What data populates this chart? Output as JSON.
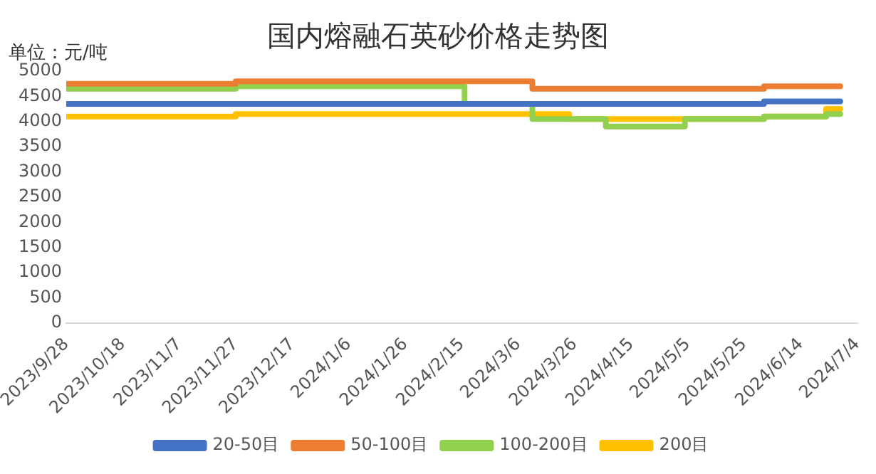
{
  "chart_data": {
    "type": "step",
    "title": "国内熔融石英砂价格走势图",
    "ylabel": "单位：元/吨",
    "xlim": [
      "2023-09-28",
      "2024-07-04"
    ],
    "xticks": [
      {
        "value": "2023-09-28",
        "label": "2023/9/28"
      },
      {
        "value": "2023-10-18",
        "label": "2023/10/18"
      },
      {
        "value": "2023-11-07",
        "label": "2023/11/7"
      },
      {
        "value": "2023-11-27",
        "label": "2023/11/27"
      },
      {
        "value": "2023-12-17",
        "label": "2023/12/17"
      },
      {
        "value": "2024-01-06",
        "label": "2024/1/6"
      },
      {
        "value": "2024-01-26",
        "label": "2024/1/26"
      },
      {
        "value": "2024-02-15",
        "label": "2024/2/15"
      },
      {
        "value": "2024-03-06",
        "label": "2024/3/6"
      },
      {
        "value": "2024-03-26",
        "label": "2024/3/26"
      },
      {
        "value": "2024-04-15",
        "label": "2024/4/15"
      },
      {
        "value": "2024-05-05",
        "label": "2024/5/5"
      },
      {
        "value": "2024-05-25",
        "label": "2024/5/25"
      },
      {
        "value": "2024-06-14",
        "label": "2024/6/14"
      },
      {
        "value": "2024-07-04",
        "label": "2024/7/4"
      }
    ],
    "ylim": [
      0,
      5000
    ],
    "yticks": [
      0,
      500,
      1000,
      1500,
      2000,
      2500,
      3000,
      3500,
      4000,
      4500,
      5000
    ],
    "grid": false,
    "legend": "bottom",
    "line_style": "solid",
    "marker": "none",
    "series": [
      {
        "name": "20-50目",
        "color": "#4472c4",
        "x": [
          "2023-09-28",
          "2023-11-27",
          "2024-06-01",
          "2024-06-28"
        ],
        "values": [
          4350,
          4350,
          4400,
          4400
        ]
      },
      {
        "name": "50-100目",
        "color": "#ed7d31",
        "x": [
          "2023-09-28",
          "2023-11-27",
          "2024-03-11",
          "2024-06-01",
          "2024-06-28"
        ],
        "values": [
          4750,
          4800,
          4650,
          4700,
          4700
        ]
      },
      {
        "name": "100-200目",
        "color": "#92d050",
        "x": [
          "2023-09-28",
          "2023-11-27",
          "2024-02-16",
          "2024-03-11",
          "2024-04-06",
          "2024-05-04",
          "2024-06-01",
          "2024-06-23",
          "2024-06-28"
        ],
        "values": [
          4650,
          4700,
          4350,
          4050,
          3900,
          4050,
          4100,
          4150,
          4150
        ]
      },
      {
        "name": "200目",
        "color": "#ffc000",
        "x": [
          "2023-09-28",
          "2023-11-27",
          "2024-03-24",
          "2024-06-01",
          "2024-06-23",
          "2024-06-28"
        ],
        "values": [
          4100,
          4150,
          4050,
          4100,
          4250,
          4250
        ]
      }
    ]
  }
}
